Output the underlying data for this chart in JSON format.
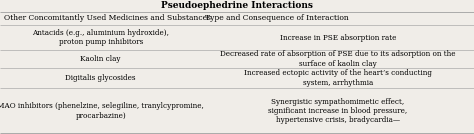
{
  "title": "Pseudoephedrine Interactions",
  "col1_header": "Other Concomitantly Used Medicines and Substances",
  "col2_header": "Type and Consequence of Interaction",
  "rows": [
    {
      "col1": "Antacids (e.g., aluminium hydroxide),\nproton pump inhibitors",
      "col2": "Increase in PSE absorption rate"
    },
    {
      "col1": "Kaolin clay",
      "col2": "Decreased rate of absorption of PSE due to its adsorption on the\nsurface of kaolin clay"
    },
    {
      "col1": "Digitalis glycosides",
      "col2": "Increased ectopic activity of the heart’s conducting\nsystem, arrhythmia"
    },
    {
      "col1": "MAO inhibitors (phenelzine, selegiline, tranylcypromine,\nprocarbazine)",
      "col2": "Synergistic sympathomimetic effect,\nsignificant increase in blood pressure,\nhypertensive crisis, bradycardia—"
    }
  ],
  "bg_color": "#f0ede8",
  "line_color": "#aaaaaa",
  "title_fontsize": 6.5,
  "header_fontsize": 5.5,
  "cell_fontsize": 5.2,
  "col_split": 0.425,
  "figw": 4.74,
  "figh": 1.34,
  "dpi": 100
}
